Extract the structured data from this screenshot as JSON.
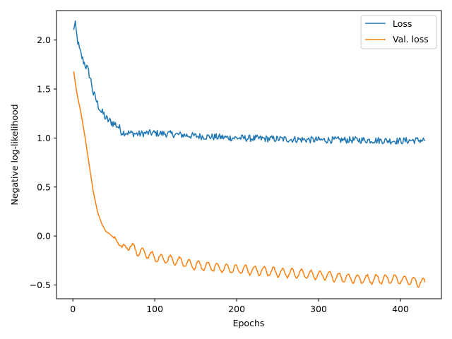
{
  "chart_data": {
    "type": "line",
    "title": "",
    "xlabel": "Epochs",
    "ylabel": "Negative log-likelihood",
    "xlim": [
      -20,
      450
    ],
    "ylim": [
      -0.64,
      2.3
    ],
    "xticks": [
      0,
      100,
      200,
      300,
      400
    ],
    "yticks": [
      -0.5,
      0.0,
      0.5,
      1.0,
      1.5,
      2.0
    ],
    "xtick_labels": [
      "0",
      "100",
      "200",
      "300",
      "400"
    ],
    "ytick_labels": [
      "−0.5",
      "0.0",
      "0.5",
      "1.0",
      "1.5",
      "2.0"
    ],
    "grid": false,
    "legend_position": "top-right",
    "series": [
      {
        "name": "Loss",
        "color": "#1f77b4",
        "x": [
          1,
          3,
          5,
          8,
          10,
          12,
          15,
          18,
          20,
          23,
          25,
          28,
          30,
          33,
          35,
          38,
          40,
          45,
          50,
          55,
          60,
          70,
          80,
          90,
          100,
          120,
          150,
          200,
          250,
          300,
          350,
          400,
          430
        ],
        "y": [
          2.12,
          2.15,
          2.03,
          1.9,
          1.85,
          1.8,
          1.75,
          1.7,
          1.65,
          1.55,
          1.45,
          1.4,
          1.35,
          1.3,
          1.26,
          1.24,
          1.2,
          1.17,
          1.15,
          1.12,
          1.06,
          1.05,
          1.04,
          1.05,
          1.05,
          1.04,
          1.02,
          1.0,
          0.99,
          0.98,
          0.98,
          0.97,
          0.98
        ]
      },
      {
        "name": "Val. loss",
        "color": "#ff7f0e",
        "x": [
          1,
          5,
          10,
          15,
          20,
          25,
          30,
          35,
          40,
          45,
          50,
          55,
          60,
          70,
          80,
          90,
          100,
          120,
          150,
          200,
          250,
          300,
          350,
          400,
          430
        ],
        "y": [
          1.68,
          1.45,
          1.25,
          1.0,
          0.72,
          0.45,
          0.25,
          0.13,
          0.05,
          0.02,
          -0.02,
          -0.06,
          -0.12,
          -0.1,
          -0.16,
          -0.18,
          -0.22,
          -0.24,
          -0.3,
          -0.34,
          -0.37,
          -0.4,
          -0.44,
          -0.44,
          -0.48
        ]
      }
    ]
  }
}
